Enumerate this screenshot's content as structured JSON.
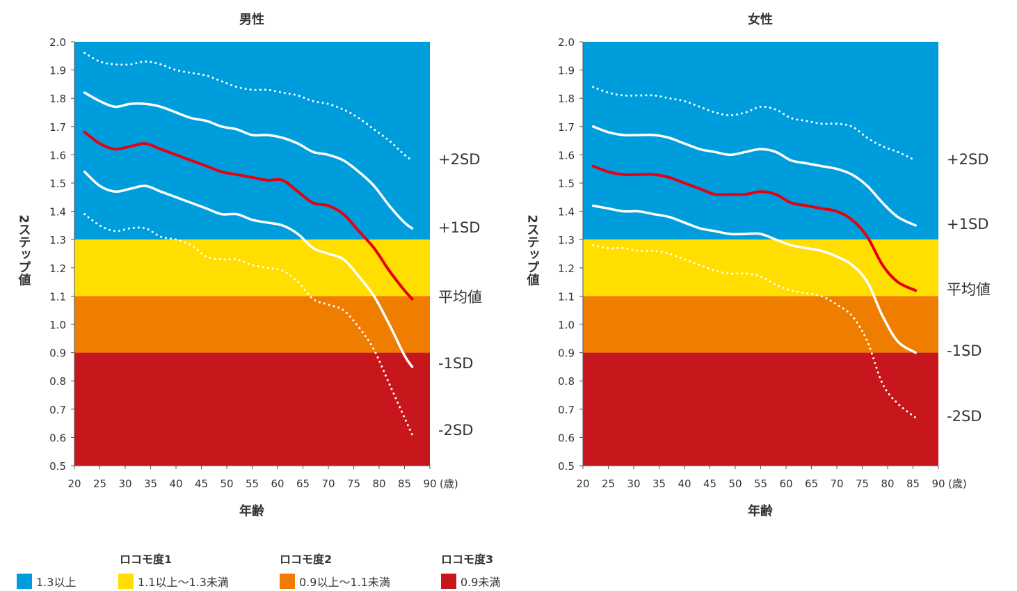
{
  "colors": {
    "band1": "#009ddd",
    "band2": "#ffde00",
    "band3": "#ef7d00",
    "band4": "#c8161d",
    "mean": "#e60012",
    "sd": "#ffffff"
  },
  "chart_data": [
    {
      "type": "line",
      "title": "男性",
      "xlabel": "年齢",
      "ylabel": "2ステップ値",
      "x_unit": "(歳)",
      "xlim": [
        20,
        90
      ],
      "ylim": [
        0.5,
        2.0
      ],
      "x_ticks": [
        "20",
        "25",
        "30",
        "35",
        "40",
        "45",
        "50",
        "55",
        "60",
        "65",
        "70",
        "75",
        "80",
        "85",
        "90"
      ],
      "y_ticks": [
        "0.5",
        "0.6",
        "0.7",
        "0.8",
        "0.9",
        "1.0",
        "1.1",
        "1.2",
        "1.3",
        "1.4",
        "1.5",
        "1.6",
        "1.7",
        "1.8",
        "1.9",
        "2.0"
      ],
      "bands": [
        {
          "from": 1.3,
          "to": 2.0,
          "color": "#009ddd"
        },
        {
          "from": 1.1,
          "to": 1.3,
          "color": "#ffde00"
        },
        {
          "from": 0.9,
          "to": 1.1,
          "color": "#ef7d00"
        },
        {
          "from": 0.5,
          "to": 0.9,
          "color": "#c8161d"
        }
      ],
      "x": [
        22,
        25,
        28,
        31,
        34,
        37,
        40,
        43,
        46,
        49,
        52,
        55,
        58,
        61,
        64,
        67,
        70,
        73,
        76,
        79,
        82,
        85,
        86.5
      ],
      "series": [
        {
          "name": "+2SD",
          "style": "dotted",
          "values": [
            1.96,
            1.93,
            1.92,
            1.92,
            1.93,
            1.92,
            1.9,
            1.89,
            1.88,
            1.86,
            1.84,
            1.83,
            1.83,
            1.82,
            1.81,
            1.79,
            1.78,
            1.76,
            1.73,
            1.69,
            1.65,
            1.6,
            1.58
          ]
        },
        {
          "name": "+1SD",
          "style": "solid",
          "values": [
            1.82,
            1.79,
            1.77,
            1.78,
            1.78,
            1.77,
            1.75,
            1.73,
            1.72,
            1.7,
            1.69,
            1.67,
            1.67,
            1.66,
            1.64,
            1.61,
            1.6,
            1.58,
            1.54,
            1.49,
            1.42,
            1.36,
            1.34
          ]
        },
        {
          "name": "平均値",
          "style": "mean",
          "values": [
            1.68,
            1.64,
            1.62,
            1.63,
            1.64,
            1.62,
            1.6,
            1.58,
            1.56,
            1.54,
            1.53,
            1.52,
            1.51,
            1.51,
            1.47,
            1.43,
            1.42,
            1.39,
            1.33,
            1.27,
            1.19,
            1.12,
            1.09
          ]
        },
        {
          "name": "-1SD",
          "style": "solid",
          "values": [
            1.54,
            1.49,
            1.47,
            1.48,
            1.49,
            1.47,
            1.45,
            1.43,
            1.41,
            1.39,
            1.39,
            1.37,
            1.36,
            1.35,
            1.32,
            1.27,
            1.25,
            1.23,
            1.17,
            1.1,
            1.0,
            0.89,
            0.85
          ]
        },
        {
          "name": "-2SD",
          "style": "dotted",
          "values": [
            1.39,
            1.35,
            1.33,
            1.34,
            1.34,
            1.31,
            1.3,
            1.28,
            1.24,
            1.23,
            1.23,
            1.21,
            1.2,
            1.19,
            1.15,
            1.09,
            1.07,
            1.05,
            0.99,
            0.91,
            0.79,
            0.67,
            0.61
          ]
        }
      ]
    },
    {
      "type": "line",
      "title": "女性",
      "xlabel": "年齢",
      "ylabel": "2ステップ値",
      "x_unit": "(歳)",
      "xlim": [
        20,
        90
      ],
      "ylim": [
        0.5,
        2.0
      ],
      "x_ticks": [
        "20",
        "25",
        "30",
        "35",
        "40",
        "45",
        "50",
        "55",
        "60",
        "65",
        "70",
        "75",
        "80",
        "85",
        "90"
      ],
      "y_ticks": [
        "0.5",
        "0.6",
        "0.7",
        "0.8",
        "0.9",
        "1.0",
        "1.1",
        "1.2",
        "1.3",
        "1.4",
        "1.5",
        "1.6",
        "1.7",
        "1.8",
        "1.9",
        "2.0"
      ],
      "bands": [
        {
          "from": 1.3,
          "to": 2.0,
          "color": "#009ddd"
        },
        {
          "from": 1.1,
          "to": 1.3,
          "color": "#ffde00"
        },
        {
          "from": 0.9,
          "to": 1.1,
          "color": "#ef7d00"
        },
        {
          "from": 0.5,
          "to": 0.9,
          "color": "#c8161d"
        }
      ],
      "x": [
        22,
        25,
        28,
        31,
        34,
        37,
        40,
        43,
        46,
        49,
        52,
        55,
        58,
        61,
        64,
        67,
        70,
        73,
        76,
        79,
        82,
        85.5
      ],
      "series": [
        {
          "name": "+2SD",
          "style": "dotted",
          "values": [
            1.84,
            1.82,
            1.81,
            1.81,
            1.81,
            1.8,
            1.79,
            1.77,
            1.75,
            1.74,
            1.75,
            1.77,
            1.76,
            1.73,
            1.72,
            1.71,
            1.71,
            1.7,
            1.66,
            1.63,
            1.61,
            1.58
          ]
        },
        {
          "name": "+1SD",
          "style": "solid",
          "values": [
            1.7,
            1.68,
            1.67,
            1.67,
            1.67,
            1.66,
            1.64,
            1.62,
            1.61,
            1.6,
            1.61,
            1.62,
            1.61,
            1.58,
            1.57,
            1.56,
            1.55,
            1.53,
            1.49,
            1.43,
            1.38,
            1.35
          ]
        },
        {
          "name": "平均値",
          "style": "mean",
          "values": [
            1.56,
            1.54,
            1.53,
            1.53,
            1.53,
            1.52,
            1.5,
            1.48,
            1.46,
            1.46,
            1.46,
            1.47,
            1.46,
            1.43,
            1.42,
            1.41,
            1.4,
            1.37,
            1.31,
            1.21,
            1.15,
            1.12
          ]
        },
        {
          "name": "-1SD",
          "style": "solid",
          "values": [
            1.42,
            1.41,
            1.4,
            1.4,
            1.39,
            1.38,
            1.36,
            1.34,
            1.33,
            1.32,
            1.32,
            1.32,
            1.3,
            1.28,
            1.27,
            1.26,
            1.24,
            1.21,
            1.15,
            1.03,
            0.94,
            0.9
          ]
        },
        {
          "name": "-2SD",
          "style": "dotted",
          "values": [
            1.28,
            1.27,
            1.27,
            1.26,
            1.26,
            1.25,
            1.23,
            1.21,
            1.19,
            1.18,
            1.18,
            1.17,
            1.14,
            1.12,
            1.11,
            1.1,
            1.07,
            1.03,
            0.94,
            0.79,
            0.72,
            0.67
          ]
        }
      ]
    }
  ],
  "legend": {
    "groups": [
      {
        "heading": "",
        "label": "1.3以上",
        "color": "#009ddd"
      },
      {
        "heading": "ロコモ度1",
        "label": "1.1以上〜1.3未満",
        "color": "#ffde00"
      },
      {
        "heading": "ロコモ度2",
        "label": "0.9以上〜1.1未満",
        "color": "#ef7d00"
      },
      {
        "heading": "ロコモ度3",
        "label": "0.9未満",
        "color": "#c8161d"
      }
    ]
  }
}
